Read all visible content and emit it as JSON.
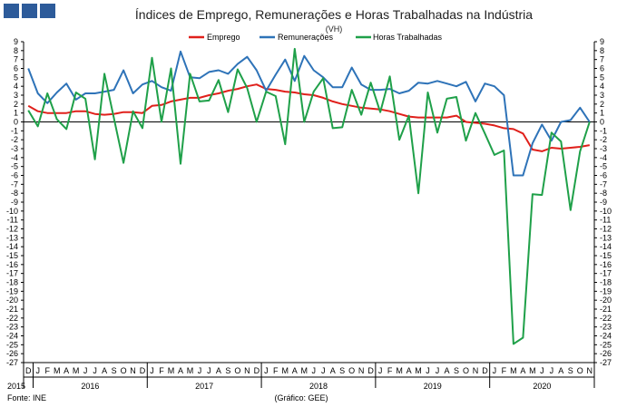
{
  "chart_data": {
    "type": "line",
    "title": "Índices de Emprego, Remunerações e Horas Trabalhadas na Indústria",
    "unit": "(VH)",
    "source": "Fonte: INE",
    "credit": "(Gráfico: GEE)",
    "ylim": [
      -27,
      9
    ],
    "yticks": [
      9,
      8,
      7,
      6,
      5,
      4,
      3,
      2,
      1,
      0,
      -1,
      -2,
      -3,
      -4,
      -5,
      -6,
      -7,
      -8,
      -9,
      -10,
      -11,
      -12,
      -13,
      -14,
      -15,
      -16,
      -17,
      -18,
      -19,
      -20,
      -21,
      -22,
      -23,
      -24,
      -25,
      -26,
      -27
    ],
    "month_labels": [
      "D",
      "J",
      "F",
      "M",
      "A",
      "M",
      "J",
      "J",
      "A",
      "S",
      "O",
      "N",
      "D",
      "J",
      "F",
      "M",
      "A",
      "M",
      "J",
      "J",
      "A",
      "S",
      "O",
      "N",
      "D",
      "J",
      "F",
      "M",
      "A",
      "M",
      "J",
      "J",
      "A",
      "S",
      "O",
      "N",
      "D",
      "J",
      "F",
      "M",
      "A",
      "M",
      "J",
      "J",
      "A",
      "S",
      "O",
      "N",
      "D",
      "J",
      "F",
      "M",
      "A",
      "M",
      "J",
      "J",
      "A",
      "S",
      "O",
      "N"
    ],
    "years": [
      {
        "label": "2015",
        "start": 0,
        "end": 0
      },
      {
        "label": "2016",
        "start": 1,
        "end": 12
      },
      {
        "label": "2017",
        "start": 13,
        "end": 24
      },
      {
        "label": "2018",
        "start": 25,
        "end": 36
      },
      {
        "label": "2019",
        "start": 37,
        "end": 48
      },
      {
        "label": "2020",
        "start": 49,
        "end": 59
      }
    ],
    "series": [
      {
        "name": "Emprego",
        "color": "#e0201b",
        "values": [
          1.8,
          1.2,
          1.0,
          1.0,
          1.0,
          1.2,
          1.2,
          0.9,
          0.8,
          0.9,
          1.1,
          1.1,
          1.0,
          1.8,
          1.9,
          2.3,
          2.5,
          2.7,
          2.7,
          3.0,
          3.2,
          3.5,
          3.7,
          4.0,
          4.2,
          3.7,
          3.6,
          3.4,
          3.3,
          3.1,
          3.0,
          2.7,
          2.3,
          2.0,
          1.8,
          1.6,
          1.5,
          1.4,
          1.2,
          0.9,
          0.6,
          0.5,
          0.5,
          0.5,
          0.5,
          0.7,
          0.0,
          -0.1,
          -0.2,
          -0.4,
          -0.7,
          -0.8,
          -1.3,
          -3.1,
          -3.3,
          -2.9,
          -3.0,
          -2.9,
          -2.8,
          -2.6
        ]
      },
      {
        "name": "Remunerações",
        "color": "#2e73b8",
        "values": [
          6.0,
          3.2,
          2.1,
          3.3,
          4.3,
          2.5,
          3.2,
          3.2,
          3.4,
          3.6,
          5.8,
          3.2,
          4.2,
          4.6,
          3.9,
          3.5,
          7.9,
          5.0,
          4.9,
          5.6,
          5.8,
          5.4,
          6.5,
          7.3,
          5.8,
          3.5,
          5.3,
          7.0,
          4.6,
          7.4,
          5.8,
          5.0,
          3.9,
          3.9,
          6.1,
          4.2,
          3.6,
          3.6,
          3.7,
          3.2,
          3.5,
          4.4,
          4.3,
          4.6,
          4.3,
          4.0,
          4.5,
          2.3,
          4.3,
          4.0,
          3.0,
          -6.0,
          -6.0,
          -2.4,
          -0.3,
          -2.1,
          0.0,
          0.2,
          1.6,
          0.0
        ]
      },
      {
        "name": "Horas Trabalhadas",
        "color": "#1fa049",
        "values": [
          1.3,
          -0.5,
          3.2,
          0.3,
          -0.8,
          3.3,
          2.6,
          -4.2,
          5.4,
          0.4,
          -4.6,
          1.2,
          -0.7,
          7.2,
          0.0,
          6.0,
          -4.7,
          5.4,
          2.3,
          2.4,
          4.7,
          1.1,
          5.9,
          3.8,
          0.0,
          3.4,
          2.9,
          -2.5,
          8.2,
          0.0,
          3.4,
          4.9,
          -0.7,
          -0.6,
          3.6,
          0.8,
          4.4,
          1.1,
          5.1,
          -2.0,
          0.7,
          -8.0,
          3.3,
          -1.2,
          2.6,
          2.8,
          -2.1,
          1.0,
          -1.3,
          -3.7,
          -3.2,
          -24.9,
          -24.2,
          -8.1,
          -8.2,
          -1.2,
          -2.2,
          -9.9,
          -3.3,
          0.0
        ]
      }
    ]
  }
}
